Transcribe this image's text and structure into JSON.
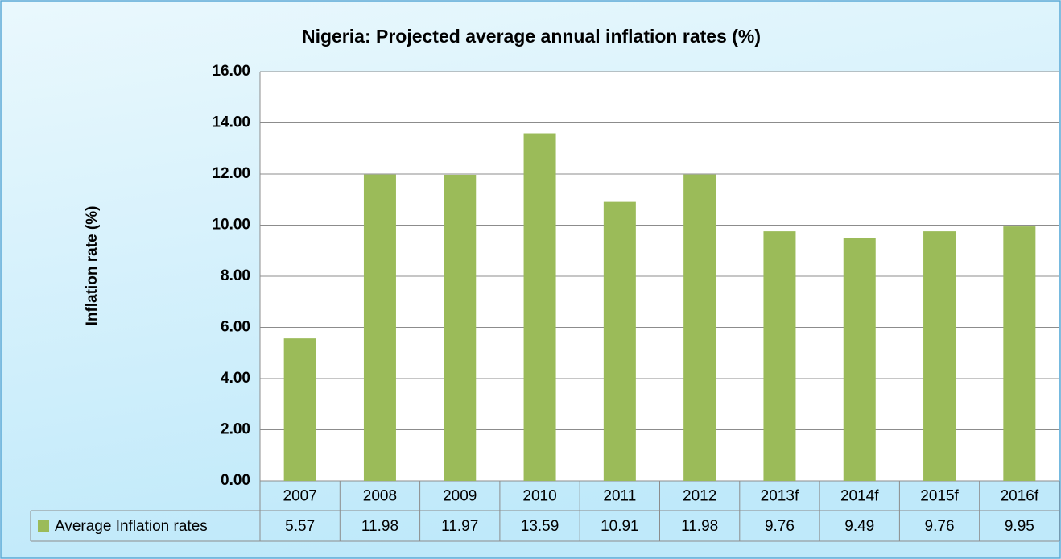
{
  "chart_data": {
    "type": "bar",
    "title": "Nigeria: Projected average annual inflation rates (%)",
    "y_label": "Inflation rate (%)",
    "categories": [
      "2007",
      "2008",
      "2009",
      "2010",
      "2011",
      "2012",
      "2013f",
      "2014f",
      "2015f",
      "2016f"
    ],
    "series": [
      {
        "name": "Average Inflation rates",
        "color": "#9bbb59",
        "values": [
          5.57,
          11.98,
          11.97,
          13.59,
          10.91,
          11.98,
          9.76,
          9.49,
          9.76,
          9.95
        ]
      }
    ],
    "ylim": [
      0,
      16
    ],
    "yticks": [
      {
        "value": 0,
        "label": "0.00"
      },
      {
        "value": 2,
        "label": "2.00"
      },
      {
        "value": 4,
        "label": "4.00"
      },
      {
        "value": 6,
        "label": "6.00"
      },
      {
        "value": 8,
        "label": "8.00"
      },
      {
        "value": 10,
        "label": "10.00"
      },
      {
        "value": 12,
        "label": "12.00"
      },
      {
        "value": 14,
        "label": "14.00"
      },
      {
        "value": 16,
        "label": "16.00"
      }
    ],
    "grid": true
  }
}
